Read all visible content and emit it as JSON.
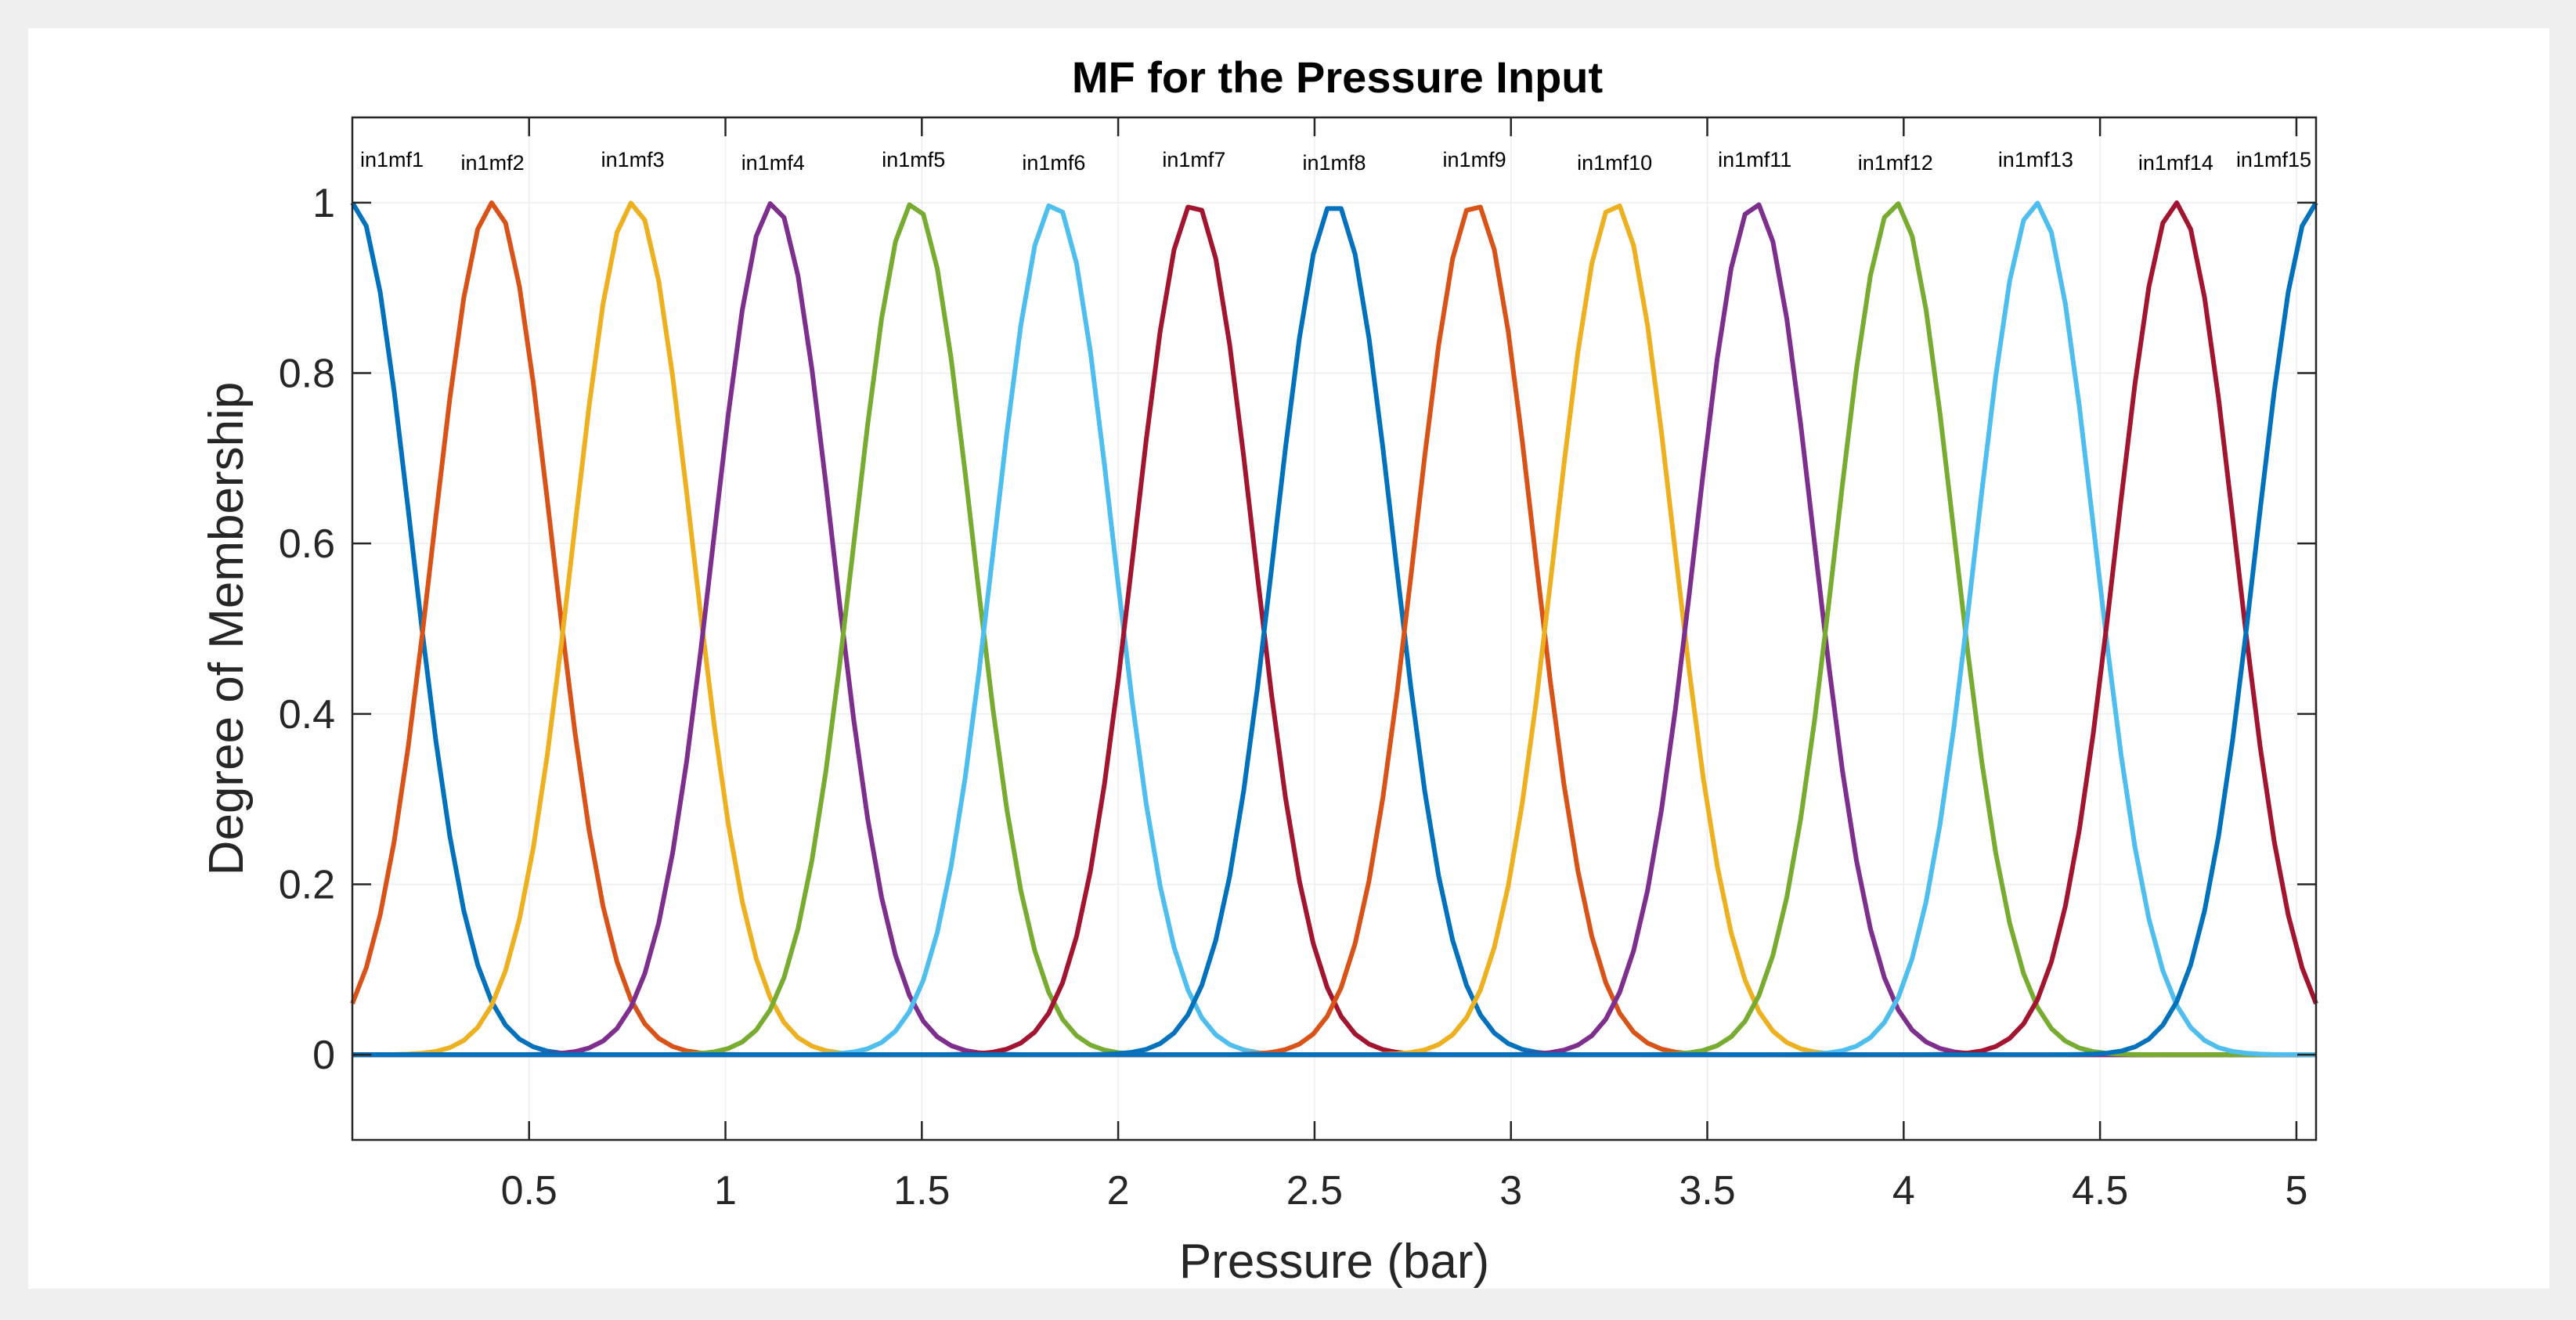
{
  "chart_data": {
    "type": "line",
    "title": "MF for the Pressure Input",
    "xlabel": "Pressure (bar)",
    "ylabel": "Degree of Membership",
    "xlim": [
      0.05,
      5.05
    ],
    "ylim": [
      -0.1,
      1.1
    ],
    "grid": true,
    "xticks": [
      0.5,
      1,
      1.5,
      2,
      2.5,
      3,
      3.5,
      4,
      4.5,
      5
    ],
    "xtick_labels": [
      "0.5",
      "1",
      "1.5",
      "2",
      "2.5",
      "3",
      "3.5",
      "4",
      "4.5",
      "5"
    ],
    "yticks": [
      0,
      0.2,
      0.4,
      0.6,
      0.8,
      1
    ],
    "ytick_labels": [
      "0",
      "0.2",
      "0.4",
      "0.6",
      "0.8",
      "1"
    ],
    "membership_function": "gaussian",
    "sigma": 0.1505,
    "series": [
      {
        "name": "in1mf1",
        "center": 0.05,
        "color": "#0072BD"
      },
      {
        "name": "in1mf2",
        "center": 0.407,
        "color": "#D95319"
      },
      {
        "name": "in1mf3",
        "center": 0.764,
        "color": "#EDB120"
      },
      {
        "name": "in1mf4",
        "center": 1.121,
        "color": "#7E2F8E"
      },
      {
        "name": "in1mf5",
        "center": 1.479,
        "color": "#77AC30"
      },
      {
        "name": "in1mf6",
        "center": 1.836,
        "color": "#4DBEEE"
      },
      {
        "name": "in1mf7",
        "center": 2.193,
        "color": "#A2142F"
      },
      {
        "name": "in1mf8",
        "center": 2.55,
        "color": "#0072BD"
      },
      {
        "name": "in1mf9",
        "center": 2.907,
        "color": "#D95319"
      },
      {
        "name": "in1mf10",
        "center": 3.264,
        "color": "#EDB120"
      },
      {
        "name": "in1mf11",
        "center": 3.621,
        "color": "#7E2F8E"
      },
      {
        "name": "in1mf12",
        "center": 3.979,
        "color": "#77AC30"
      },
      {
        "name": "in1mf13",
        "center": 4.336,
        "color": "#4DBEEE"
      },
      {
        "name": "in1mf14",
        "center": 4.693,
        "color": "#A2142F"
      },
      {
        "name": "in1mf15",
        "center": 5.05,
        "color": "#0072BD"
      }
    ]
  }
}
